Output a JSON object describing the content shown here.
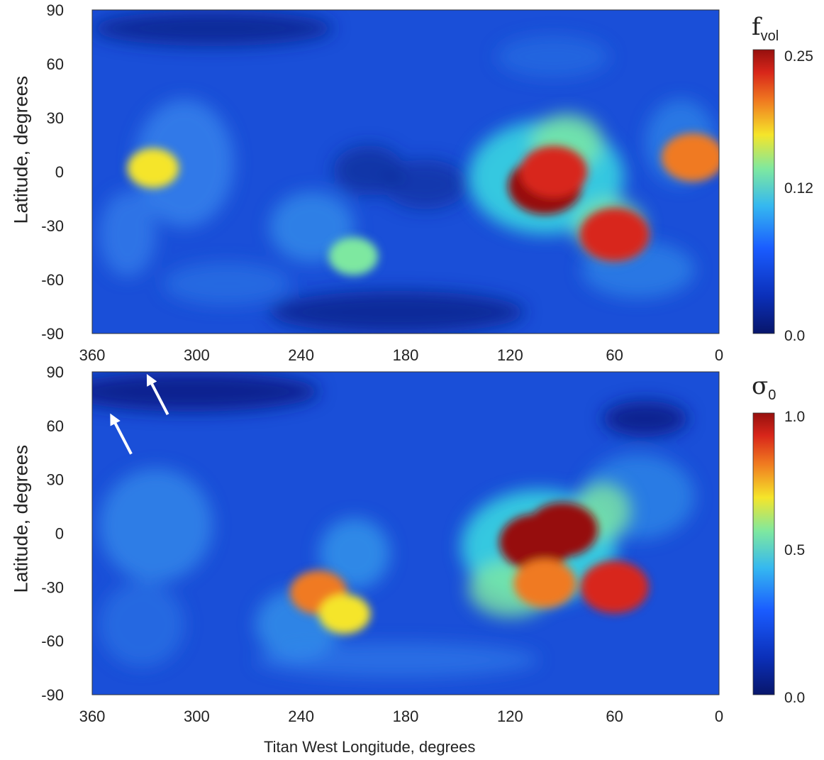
{
  "chart_data": [
    {
      "type": "heatmap",
      "title": "",
      "xlabel": "",
      "ylabel": "Latitude, degrees",
      "xlim": [
        360,
        0
      ],
      "ylim": [
        -90,
        90
      ],
      "x_ticks": [
        "360",
        "300",
        "240",
        "180",
        "120",
        "60",
        "0"
      ],
      "y_ticks": [
        "90",
        "60",
        "30",
        "0",
        "-30",
        "-60",
        "-90"
      ],
      "colorbar": {
        "label": "f",
        "label_sub": "vol",
        "range": [
          0.0,
          0.25
        ],
        "ticks": [
          "0.25",
          "0.12",
          "0.0"
        ]
      },
      "grid": false,
      "hotspots": [
        {
          "lon": 100,
          "lat": -8,
          "value": 0.25
        },
        {
          "lon": 95,
          "lat": 0,
          "value": 0.22
        },
        {
          "lon": 60,
          "lat": -35,
          "value": 0.23
        },
        {
          "lon": 15,
          "lat": 8,
          "value": 0.2
        },
        {
          "lon": 325,
          "lat": 2,
          "value": 0.15
        },
        {
          "lon": 210,
          "lat": -47,
          "value": 0.14
        }
      ]
    },
    {
      "type": "heatmap",
      "title": "",
      "xlabel": "Titan West Longitude, degrees",
      "ylabel": "Latitude, degrees",
      "xlim": [
        360,
        0
      ],
      "ylim": [
        -90,
        90
      ],
      "x_ticks": [
        "360",
        "300",
        "240",
        "180",
        "120",
        "60",
        "0"
      ],
      "y_ticks": [
        "90",
        "60",
        "30",
        "0",
        "-30",
        "-60",
        "-90"
      ],
      "colorbar": {
        "label": "σ",
        "label_sub": "0",
        "range": [
          0.0,
          1.0
        ],
        "ticks": [
          "1.0",
          "0.5",
          "0.0"
        ]
      },
      "grid": false,
      "annotations": [
        {
          "type": "arrow",
          "color": "#ffffff",
          "tip_lon": 328,
          "tip_lat": 88
        },
        {
          "type": "arrow",
          "color": "#ffffff",
          "tip_lon": 349,
          "tip_lat": 66
        }
      ],
      "hotspots": [
        {
          "lon": 105,
          "lat": -5,
          "value": 1.0
        },
        {
          "lon": 90,
          "lat": 2,
          "value": 0.95
        },
        {
          "lon": 60,
          "lat": -30,
          "value": 0.9
        },
        {
          "lon": 100,
          "lat": -28,
          "value": 0.8
        },
        {
          "lon": 230,
          "lat": -33,
          "value": 0.7
        },
        {
          "lon": 215,
          "lat": -45,
          "value": 0.6
        }
      ]
    }
  ],
  "colors": {
    "background_field": "#1a4fd8",
    "colormap": [
      "#08166b",
      "#0b2fb8",
      "#1a5cff",
      "#35b8f0",
      "#7ee8a0",
      "#f5e52a",
      "#f07a20",
      "#d8261a",
      "#96100e"
    ]
  }
}
